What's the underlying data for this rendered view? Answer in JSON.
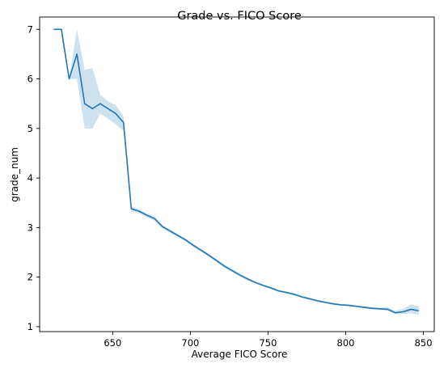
{
  "chart_data": {
    "type": "line",
    "title": "Grade vs. FICO Score",
    "xlabel": "Average FICO Score",
    "ylabel": "grade_num",
    "xlim": [
      603,
      857
    ],
    "ylim": [
      0.9,
      7.25
    ],
    "xticks": [
      650,
      700,
      750,
      800,
      850
    ],
    "yticks": [
      1,
      2,
      3,
      4,
      5,
      6,
      7
    ],
    "grid": false,
    "legend": "none",
    "colors": {
      "line": "#1f77b4",
      "band": "#1f77b4",
      "band_opacity": 0.22
    },
    "series": [
      {
        "x": [
          612,
          617,
          622,
          627,
          632,
          637,
          642,
          647,
          652,
          657,
          662,
          667,
          672,
          677,
          682,
          687,
          692,
          697,
          702,
          707,
          712,
          717,
          722,
          727,
          732,
          737,
          742,
          747,
          752,
          757,
          762,
          767,
          772,
          777,
          782,
          787,
          792,
          797,
          802,
          807,
          812,
          817,
          822,
          827,
          832,
          837,
          842,
          847
        ],
        "y": [
          7.0,
          7.0,
          6.0,
          6.5,
          5.5,
          5.4,
          5.5,
          5.4,
          5.3,
          5.12,
          3.38,
          3.33,
          3.25,
          3.18,
          3.02,
          2.93,
          2.84,
          2.75,
          2.64,
          2.54,
          2.44,
          2.33,
          2.22,
          2.13,
          2.04,
          1.96,
          1.89,
          1.83,
          1.78,
          1.72,
          1.69,
          1.65,
          1.6,
          1.56,
          1.52,
          1.49,
          1.46,
          1.44,
          1.43,
          1.41,
          1.39,
          1.37,
          1.36,
          1.35,
          1.28,
          1.3,
          1.35,
          1.32
        ],
        "ci_low": [
          7.0,
          7.0,
          6.0,
          6.0,
          5.0,
          5.0,
          5.3,
          5.2,
          5.08,
          4.95,
          3.33,
          3.29,
          3.21,
          3.14,
          2.99,
          2.9,
          2.81,
          2.72,
          2.61,
          2.51,
          2.41,
          2.3,
          2.19,
          2.1,
          2.01,
          1.93,
          1.87,
          1.81,
          1.76,
          1.7,
          1.67,
          1.63,
          1.58,
          1.54,
          1.5,
          1.47,
          1.44,
          1.42,
          1.41,
          1.39,
          1.37,
          1.35,
          1.34,
          1.32,
          1.25,
          1.26,
          1.27,
          1.24
        ],
        "ci_high": [
          7.0,
          7.0,
          6.0,
          7.0,
          6.18,
          6.22,
          5.68,
          5.55,
          5.47,
          5.25,
          3.43,
          3.37,
          3.29,
          3.22,
          3.05,
          2.96,
          2.87,
          2.78,
          2.67,
          2.57,
          2.47,
          2.36,
          2.25,
          2.16,
          2.07,
          1.99,
          1.91,
          1.85,
          1.8,
          1.74,
          1.71,
          1.67,
          1.62,
          1.58,
          1.54,
          1.51,
          1.48,
          1.46,
          1.45,
          1.43,
          1.41,
          1.39,
          1.38,
          1.39,
          1.32,
          1.36,
          1.45,
          1.41
        ]
      }
    ]
  }
}
